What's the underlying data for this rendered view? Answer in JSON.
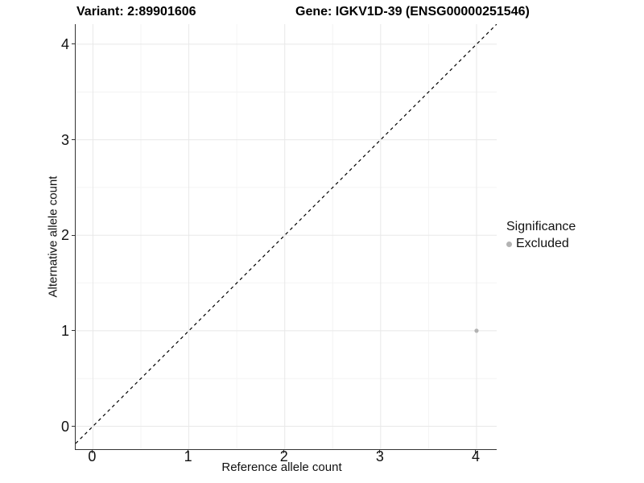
{
  "chart_data": {
    "type": "scatter",
    "title_left": "Variant: 2:89901606",
    "title_right": "Gene: IGKV1D-39 (ENSG00000251546)",
    "xlabel": "Reference allele count",
    "ylabel": "Alternative allele count",
    "xlim": [
      -0.18,
      4.21
    ],
    "ylim": [
      -0.24,
      4.21
    ],
    "x_ticks": [
      "0",
      "1",
      "2",
      "3",
      "4"
    ],
    "x_tick_values": [
      0,
      1,
      2,
      3,
      4
    ],
    "y_ticks": [
      "0",
      "1",
      "2",
      "3",
      "4"
    ],
    "y_tick_values": [
      0,
      1,
      2,
      3,
      4
    ],
    "minor_x": [
      0.5,
      1.5,
      2.5,
      3.5
    ],
    "minor_y": [
      0.5,
      1.5,
      2.5,
      3.5
    ],
    "grid": "major+minor",
    "identity_line": {
      "equation": "y = x",
      "style": "dashed",
      "color": "#000000"
    },
    "series": [
      {
        "name": "Excluded",
        "color": "#b3b3b3",
        "points": [
          {
            "x": 4,
            "y": 1
          }
        ]
      }
    ],
    "legend": {
      "title": "Significance",
      "position": "right",
      "entries": [
        {
          "label": "Excluded",
          "color": "#b3b3b3"
        }
      ]
    },
    "colors": {
      "grid_major": "#e8e8e8",
      "grid_minor": "#f4f4f4",
      "axis_line": "#333333",
      "point": "#b3b3b3"
    }
  }
}
